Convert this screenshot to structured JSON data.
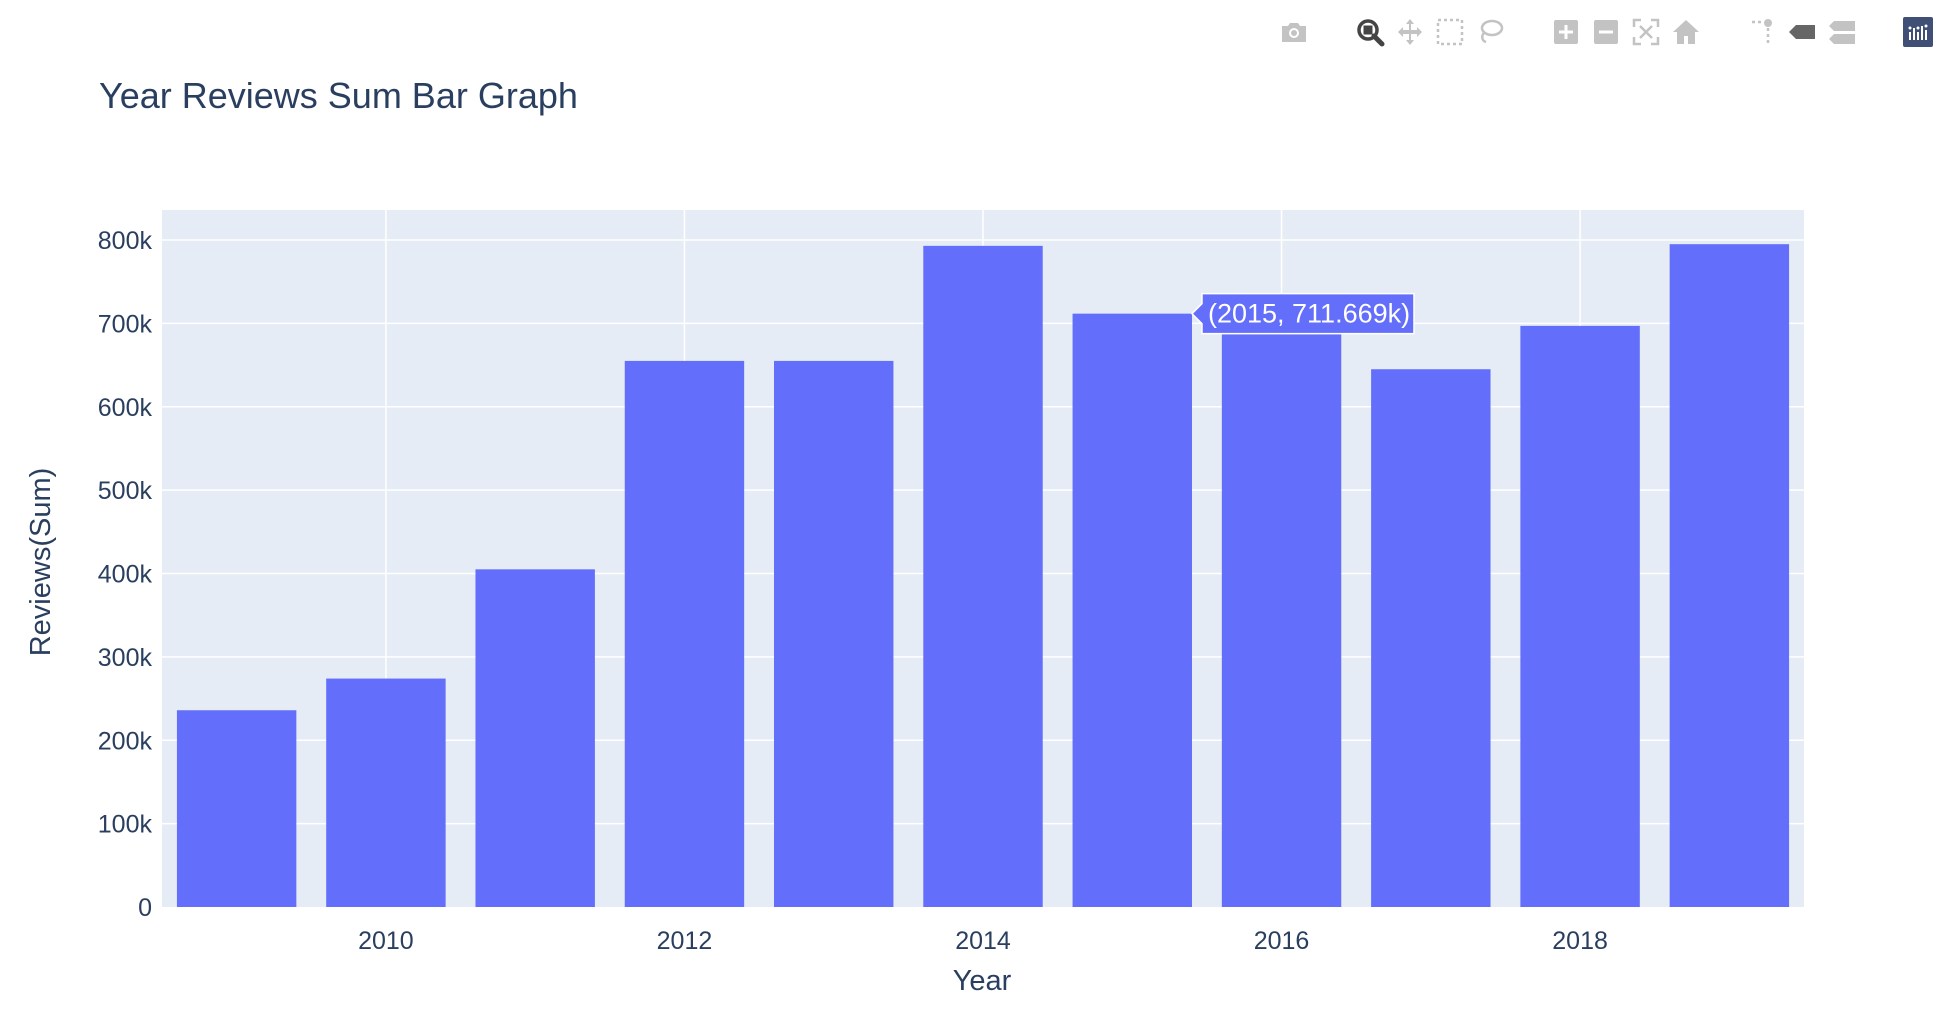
{
  "modebar": {
    "groups": [
      [
        "camera-icon"
      ],
      [
        "zoom-icon",
        "pan-icon",
        "box-select-icon",
        "lasso-select-icon"
      ],
      [
        "zoom-in-icon",
        "zoom-out-icon",
        "autoscale-icon",
        "reset-axes-icon"
      ],
      [
        "spike-lines-icon",
        "hover-closest-icon",
        "hover-compare-icon"
      ],
      [
        "plotly-logo-icon"
      ]
    ],
    "icon_color": "#c3c3c3",
    "active_icon_color": "#444444",
    "logo_color": "#3f4f75"
  },
  "chart_data": {
    "type": "bar",
    "title": "Year Reviews Sum Bar Graph",
    "xlabel": "Year",
    "ylabel": "Reviews(Sum)",
    "x": [
      2009,
      2010,
      2011,
      2012,
      2013,
      2014,
      2015,
      2016,
      2017,
      2018,
      2019
    ],
    "values": [
      236000,
      274000,
      405000,
      655000,
      655000,
      793000,
      711669,
      687000,
      645000,
      697000,
      795000
    ],
    "x_tick_values": [
      2010,
      2012,
      2014,
      2016,
      2018
    ],
    "x_tick_labels": [
      "2010",
      "2012",
      "2014",
      "2016",
      "2018"
    ],
    "y_tick_values": [
      0,
      100000,
      200000,
      300000,
      400000,
      500000,
      600000,
      700000,
      800000
    ],
    "y_tick_labels": [
      "0",
      "100k",
      "200k",
      "300k",
      "400k",
      "500k",
      "600k",
      "700k",
      "800k"
    ],
    "xlim": [
      2008.5,
      2019.5
    ],
    "ylim": [
      0,
      836000
    ],
    "grid": true,
    "bar_color": "#636efa",
    "plot_bg": "#e5ecf6",
    "text_color": "#2a3f5f",
    "hover": {
      "text": "(2015, 711.669k)",
      "x": 2015,
      "y": 711669
    }
  }
}
